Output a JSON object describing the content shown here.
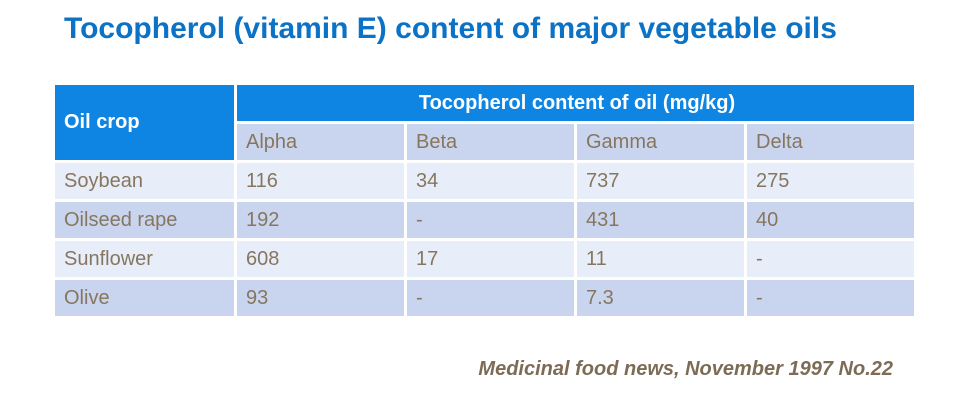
{
  "title": "Tocopherol (vitamin E) content of major vegetable oils",
  "chart_data": {
    "type": "table",
    "title": "Tocopherol (vitamin E) content of major vegetable oils",
    "row_header": "Oil crop",
    "group_header": "Tocopherol content of oil (mg/kg)",
    "columns": [
      "Alpha",
      "Beta",
      "Gamma",
      "Delta"
    ],
    "rows": [
      {
        "label": "Soybean",
        "values": [
          "116",
          "34",
          "737",
          "275"
        ]
      },
      {
        "label": "Oilseed rape",
        "values": [
          "192",
          "-",
          "431",
          "40"
        ]
      },
      {
        "label": "Sunflower",
        "values": [
          "608",
          "17",
          "11",
          "-"
        ]
      },
      {
        "label": "Olive",
        "values": [
          "93",
          "-",
          "7.3",
          "-"
        ]
      }
    ],
    "units": "mg/kg",
    "source": "Medicinal food news, November 1997 No.22"
  },
  "colors": {
    "title_blue": "#0b72c6",
    "header_blue": "#0e85e2",
    "header_text": "#ffffff",
    "band_light": "#e8eef9",
    "band_dark": "#c9d5ee",
    "cell_text": "#87765f",
    "source_text": "#7d6c55"
  }
}
